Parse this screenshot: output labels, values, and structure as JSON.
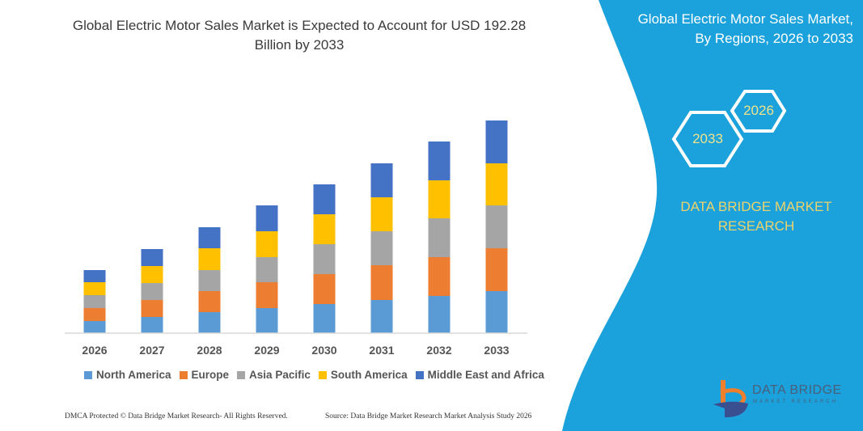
{
  "title": "Global Electric Motor Sales Market is Expected to Account for USD 192.28 Billion by 2033",
  "side_panel": {
    "title_line1": "Global Electric Motor Sales Market,",
    "title_line2": "By Regions, 2026 to 2033",
    "hex_start": "2026",
    "hex_end": "2033",
    "brand_line1": "DATA BRIDGE MARKET",
    "brand_line2": "RESEARCH",
    "background_color": "#1ba1db"
  },
  "logo": {
    "text": "DATA BRIDGE",
    "subtext": "MARKET RESEARCH"
  },
  "footer": {
    "left": "DMCA Protected © Data Bridge Market Research-  All Rights Reserved.",
    "right": "Source: Data Bridge Market Research  Market Analysis Study 2026"
  },
  "chart_data": {
    "type": "bar",
    "stacked": true,
    "title": "Global Electric Motor Sales Market is Expected to Account for USD 192.28 Billion by 2033",
    "xlabel": "",
    "ylabel": "",
    "grid": false,
    "legend_position": "bottom",
    "categories": [
      "2026",
      "2027",
      "2028",
      "2029",
      "2030",
      "2031",
      "2032",
      "2033"
    ],
    "series": [
      {
        "name": "North America",
        "color": "#5b9bd5",
        "values": [
          15,
          20,
          26,
          31,
          36,
          41,
          46,
          52
        ]
      },
      {
        "name": "Europe",
        "color": "#ed7d31",
        "values": [
          16,
          21,
          26,
          32,
          37,
          43,
          48,
          53
        ]
      },
      {
        "name": "Asia Pacific",
        "color": "#a5a5a5",
        "values": [
          16,
          21,
          26,
          31,
          37,
          42,
          48,
          53
        ]
      },
      {
        "name": "South America",
        "color": "#ffc000",
        "values": [
          16,
          21,
          27,
          32,
          37,
          42,
          47,
          52
        ]
      },
      {
        "name": "Middle East and Africa",
        "color": "#4472c4",
        "values": [
          15,
          21,
          26,
          32,
          37,
          42,
          48,
          53
        ]
      }
    ]
  }
}
